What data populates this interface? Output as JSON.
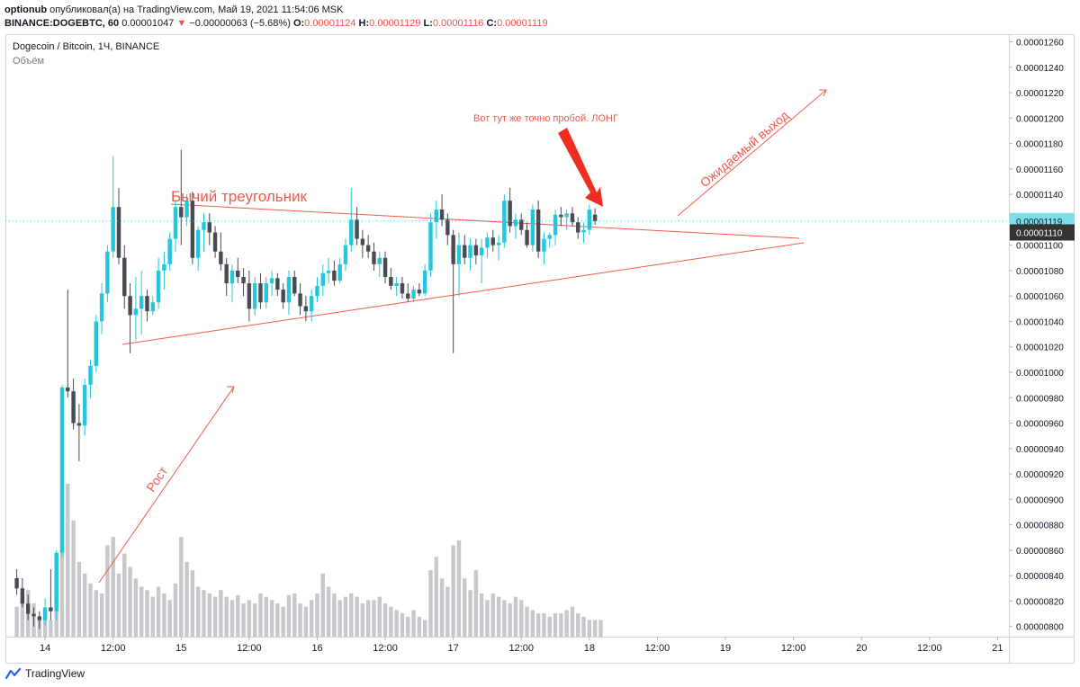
{
  "header": {
    "author": "optionub",
    "published_text": "опубликовал(а) на TradingView.com, Май 19, 2021 11:54:06 MSK",
    "symbol_line": "BINANCE:DOGEBTC, 60",
    "last": "0.00001047",
    "change": "−0.00000063 (−5.68%)",
    "o_label": "O:",
    "o_value": "0.00001124",
    "h_label": "H:",
    "h_value": "0.00001129",
    "l_label": "L:",
    "l_value": "0.00001116",
    "c_label": "C:",
    "c_value": "0.00001119"
  },
  "legend": {
    "title": "Dogecoin / Bitcoin, 1Ч, BINANCE",
    "volume_label": "Объём"
  },
  "footer": {
    "brand": "TradingView"
  },
  "colors": {
    "up": "#26c6da",
    "down": "#4a4a55",
    "annotation": "#f05a4a",
    "volume": "#c8c8cc",
    "price_tag_current": "#7ddde8",
    "price_tag_alt": "#333333"
  },
  "chart_data": {
    "type": "candlestick",
    "title": "Dogecoin / Bitcoin, 1Ч, BINANCE",
    "y_axis_ticks": [
      "0.00000800",
      "0.00000820",
      "0.00000840",
      "0.00000860",
      "0.00000880",
      "0.00000900",
      "0.00000920",
      "0.00000940",
      "0.00000960",
      "0.00000980",
      "0.00001000",
      "0.00001020",
      "0.00001040",
      "0.00001060",
      "0.00001080",
      "0.00001100",
      "0.00001120",
      "0.00001140",
      "0.00001160",
      "0.00001180",
      "0.00001200",
      "0.00001220",
      "0.00001240",
      "0.00001260"
    ],
    "ylim": [
      7.92e-06,
      1.266e-05
    ],
    "x_axis_ticks": [
      {
        "label": "14",
        "hour": 0
      },
      {
        "label": "12:00",
        "hour": 12
      },
      {
        "label": "15",
        "hour": 24
      },
      {
        "label": "12:00",
        "hour": 36
      },
      {
        "label": "16",
        "hour": 48
      },
      {
        "label": "12:00",
        "hour": 60
      },
      {
        "label": "17",
        "hour": 72
      },
      {
        "label": "12:00",
        "hour": 84
      },
      {
        "label": "18",
        "hour": 96
      },
      {
        "label": "12:00",
        "hour": 108
      },
      {
        "label": "19",
        "hour": 120
      },
      {
        "label": "12:00",
        "hour": 132
      },
      {
        "label": "20",
        "hour": 144
      },
      {
        "label": "12:00",
        "hour": 156
      },
      {
        "label": "21",
        "hour": 168
      }
    ],
    "x_range_hours": [
      -7,
      170
    ],
    "price_tags": [
      {
        "value": "0.00001119",
        "kind": "current"
      },
      {
        "value": "0.00001110",
        "kind": "alt"
      }
    ],
    "series": [
      {
        "name": "DOGEBTC",
        "ohlc": [
          [
            8.38e-06,
            8.45e-06,
            8.25e-06,
            8.3e-06
          ],
          [
            8.3e-06,
            8.38e-06,
            8.15e-06,
            8.18e-06
          ],
          [
            8.18e-06,
            8.25e-06,
            8.05e-06,
            8.1e-06
          ],
          [
            8.1e-06,
            8.15e-06,
            8e-06,
            8.08e-06
          ],
          [
            8.08e-06,
            8.12e-06,
            7.98e-06,
            8.05e-06
          ],
          [
            8.05e-06,
            8.22e-06,
            8e-06,
            8.15e-06
          ],
          [
            8.15e-06,
            8.45e-06,
            8.05e-06,
            8.12e-06
          ],
          [
            8.12e-06,
            8.6e-06,
            8.05e-06,
            8.58e-06
          ],
          [
            8.58e-06,
            9.9e-06,
            8.55e-06,
            9.88e-06
          ],
          [
            9.88e-06,
            1.065e-05,
            9.8e-06,
            9.85e-06
          ],
          [
            9.85e-06,
            9.95e-06,
            9.55e-06,
            9.6e-06
          ],
          [
            9.6e-06,
            9.75e-06,
            9.3e-06,
            9.58e-06
          ],
          [
            9.58e-06,
            9.95e-06,
            9.5e-06,
            9.9e-06
          ],
          [
            9.9e-06,
            1.01e-05,
            9.8e-06,
            1.005e-05
          ],
          [
            1.005e-05,
            1.045e-05,
            1e-05,
            1.04e-05
          ],
          [
            1.04e-05,
            1.07e-05,
            1.03e-05,
            1.062e-05
          ],
          [
            1.062e-05,
            1.1e-05,
            1.055e-05,
            1.095e-05
          ],
          [
            1.095e-05,
            1.17e-05,
            1.09e-05,
            1.13e-05
          ],
          [
            1.13e-05,
            1.145e-05,
            1.085e-05,
            1.09e-05
          ],
          [
            1.09e-05,
            1.1e-05,
            1.05e-05,
            1.06e-05
          ],
          [
            1.06e-05,
            1.07e-05,
            1.015e-05,
            1.045e-05
          ],
          [
            1.045e-05,
            1.075e-05,
            1.025e-05,
            1.05e-05
          ],
          [
            1.05e-05,
            1.08e-05,
            1.03e-05,
            1.06e-05
          ],
          [
            1.06e-05,
            1.065e-05,
            1.04e-05,
            1.048e-05
          ],
          [
            1.048e-05,
            1.06e-05,
            1.045e-05,
            1.055e-05
          ],
          [
            1.055e-05,
            1.09e-05,
            1.05e-05,
            1.08e-05
          ],
          [
            1.08e-05,
            1.095e-05,
            1.065e-05,
            1.085e-05
          ],
          [
            1.085e-05,
            1.11e-05,
            1.08e-05,
            1.105e-05
          ],
          [
            1.105e-05,
            1.135e-05,
            1.095e-05,
            1.13e-05
          ],
          [
            1.13e-05,
            1.175e-05,
            1.1e-05,
            1.122e-05
          ],
          [
            1.122e-05,
            1.14e-05,
            1.115e-05,
            1.135e-05
          ],
          [
            1.135e-05,
            1.142e-05,
            1.085e-05,
            1.09e-05
          ],
          [
            1.09e-05,
            1.115e-05,
            1.08e-05,
            1.112e-05
          ],
          [
            1.112e-05,
            1.125e-05,
            1.095e-05,
            1.118e-05
          ],
          [
            1.118e-05,
            1.125e-05,
            1.1e-05,
            1.11e-05
          ],
          [
            1.11e-05,
            1.115e-05,
            1.09e-05,
            1.095e-05
          ],
          [
            1.095e-05,
            1.11e-05,
            1.08e-05,
            1.085e-05
          ],
          [
            1.085e-05,
            1.09e-05,
            1.06e-05,
            1.07e-05
          ],
          [
            1.07e-05,
            1.085e-05,
            1.055e-05,
            1.08e-05
          ],
          [
            1.08e-05,
            1.09e-05,
            1.07e-05,
            1.075e-05
          ],
          [
            1.075e-05,
            1.082e-05,
            1.06e-05,
            1.07e-05
          ],
          [
            1.07e-05,
            1.08e-05,
            1.04e-05,
            1.05e-05
          ],
          [
            1.05e-05,
            1.075e-05,
            1.045e-05,
            1.07e-05
          ],
          [
            1.07e-05,
            1.078e-05,
            1.05e-05,
            1.055e-05
          ],
          [
            1.055e-05,
            1.075e-05,
            1.05e-05,
            1.07e-05
          ],
          [
            1.07e-05,
            1.08e-05,
            1.06e-05,
            1.074e-05
          ],
          [
            1.074e-05,
            1.078e-05,
            1.06e-05,
            1.065e-05
          ],
          [
            1.065e-05,
            1.07e-05,
            1.05e-05,
            1.055e-05
          ],
          [
            1.055e-05,
            1.08e-05,
            1.045e-05,
            1.075e-05
          ],
          [
            1.075e-05,
            1.08e-05,
            1.06e-05,
            1.062e-05
          ],
          [
            1.062e-05,
            1.07e-05,
            1.045e-05,
            1.052e-05
          ],
          [
            1.052e-05,
            1.06e-05,
            1.04e-05,
            1.048e-05
          ],
          [
            1.048e-05,
            1.065e-05,
            1.04e-05,
            1.06e-05
          ],
          [
            1.06e-05,
            1.075e-05,
            1.055e-05,
            1.068e-05
          ],
          [
            1.068e-05,
            1.085e-05,
            1.06e-05,
            1.078e-05
          ],
          [
            1.078e-05,
            1.09e-05,
            1.07e-05,
            1.08e-05
          ],
          [
            1.08e-05,
            1.088e-05,
            1.068e-05,
            1.072e-05
          ],
          [
            1.072e-05,
            1.09e-05,
            1.07e-05,
            1.085e-05
          ],
          [
            1.085e-05,
            1.105e-05,
            1.08e-05,
            1.1e-05
          ],
          [
            1.1e-05,
            1.145e-05,
            1.095e-05,
            1.12e-05
          ],
          [
            1.12e-05,
            1.13e-05,
            1.1e-05,
            1.105e-05
          ],
          [
            1.105e-05,
            1.112e-05,
            1.09e-05,
            1.1e-05
          ],
          [
            1.1e-05,
            1.108e-05,
            1.09e-05,
            1.095e-05
          ],
          [
            1.095e-05,
            1.102e-05,
            1.08e-05,
            1.085e-05
          ],
          [
            1.085e-05,
            1.095e-05,
            1.075e-05,
            1.09e-05
          ],
          [
            1.09e-05,
            1.095e-05,
            1.07e-05,
            1.075e-05
          ],
          [
            1.075e-05,
            1.082e-05,
            1.065e-05,
            1.068e-05
          ],
          [
            1.068e-05,
            1.075e-05,
            1.06e-05,
            1.07e-05
          ],
          [
            1.07e-05,
            1.075e-05,
            1.058e-05,
            1.062e-05
          ],
          [
            1.062e-05,
            1.07e-05,
            1.055e-05,
            1.058e-05
          ],
          [
            1.058e-05,
            1.068e-05,
            1.055e-05,
            1.065e-05
          ],
          [
            1.065e-05,
            1.07e-05,
            1.06e-05,
            1.062e-05
          ],
          [
            1.062e-05,
            1.085e-05,
            1.06e-05,
            1.08e-05
          ],
          [
            1.08e-05,
            1.125e-05,
            1.075e-05,
            1.118e-05
          ],
          [
            1.118e-05,
            1.135e-05,
            1.105e-05,
            1.128e-05
          ],
          [
            1.128e-05,
            1.14e-05,
            1.115e-05,
            1.12e-05
          ],
          [
            1.12e-05,
            1.125e-05,
            1.1e-05,
            1.108e-05
          ],
          [
            1.108e-05,
            1.112e-05,
            1.015e-05,
            1.085e-05
          ],
          [
            1.085e-05,
            1.11e-05,
            1.06e-05,
            1.1e-05
          ],
          [
            1.1e-05,
            1.108e-05,
            1.085e-05,
            1.09e-05
          ],
          [
            1.09e-05,
            1.105e-05,
            1.08e-05,
            1.1e-05
          ],
          [
            1.1e-05,
            1.105e-05,
            1.085e-05,
            1.092e-05
          ],
          [
            1.092e-05,
            1.105e-05,
            1.07e-05,
            1.098e-05
          ],
          [
            1.098e-05,
            1.11e-05,
            1.09e-05,
            1.106e-05
          ],
          [
            1.106e-05,
            1.112e-05,
            1.095e-05,
            1.1e-05
          ],
          [
            1.1e-05,
            1.108e-05,
            1.088e-05,
            1.102e-05
          ],
          [
            1.102e-05,
            1.14e-05,
            1.098e-05,
            1.135e-05
          ],
          [
            1.135e-05,
            1.145e-05,
            1.11e-05,
            1.115e-05
          ],
          [
            1.115e-05,
            1.125e-05,
            1.105e-05,
            1.12e-05
          ],
          [
            1.12e-05,
            1.125e-05,
            1.108e-05,
            1.112e-05
          ],
          [
            1.112e-05,
            1.118e-05,
            1.098e-05,
            1.1e-05
          ],
          [
            1.1e-05,
            1.132e-05,
            1.095e-05,
            1.128e-05
          ],
          [
            1.128e-05,
            1.135e-05,
            1.09e-05,
            1.095e-05
          ],
          [
            1.095e-05,
            1.11e-05,
            1.085e-05,
            1.105e-05
          ],
          [
            1.105e-05,
            1.11e-05,
            1.098e-05,
            1.108e-05
          ],
          [
            1.108e-05,
            1.128e-05,
            1.1e-05,
            1.124e-05
          ],
          [
            1.124e-05,
            1.13e-05,
            1.115e-05,
            1.122e-05
          ],
          [
            1.122e-05,
            1.128e-05,
            1.112e-05,
            1.125e-05
          ],
          [
            1.125e-05,
            1.13e-05,
            1.115e-05,
            1.118e-05
          ],
          [
            1.118e-05,
            1.122e-05,
            1.105e-05,
            1.11e-05
          ],
          [
            1.11e-05,
            1.118e-05,
            1.102e-05,
            1.112e-05
          ],
          [
            1.112e-05,
            1.132e-05,
            1.108e-05,
            1.128e-05
          ],
          [
            1.124e-05,
            1.129e-05,
            1.116e-05,
            1.119e-05
          ]
        ]
      },
      {
        "name": "Объём",
        "values": [
          18,
          22,
          28,
          20,
          12,
          16,
          10,
          50,
          85,
          92,
          70,
          45,
          38,
          32,
          28,
          26,
          55,
          60,
          38,
          50,
          42,
          35,
          30,
          28,
          24,
          30,
          26,
          22,
          32,
          60,
          45,
          40,
          30,
          28,
          26,
          24,
          28,
          24,
          22,
          25,
          20,
          22,
          20,
          26,
          24,
          22,
          20,
          18,
          25,
          26,
          20,
          18,
          22,
          26,
          38,
          30,
          26,
          22,
          24,
          26,
          24,
          20,
          22,
          22,
          24,
          20,
          18,
          16,
          14,
          12,
          16,
          12,
          10,
          40,
          48,
          35,
          30,
          55,
          58,
          35,
          28,
          40,
          26,
          22,
          26,
          24,
          22,
          20,
          24,
          22,
          18,
          16,
          14,
          14,
          12,
          14,
          14,
          16,
          18,
          14,
          12,
          10,
          10,
          10
        ]
      }
    ],
    "annotations": [
      {
        "kind": "text",
        "text": "Бычий треугольник"
      },
      {
        "kind": "text",
        "text": "Вот тут же точно пробой. ЛОНГ"
      },
      {
        "kind": "text",
        "text": "Ожидаемый выход"
      },
      {
        "kind": "text",
        "text": "Рост"
      }
    ],
    "grid": false,
    "legend": "top-left"
  }
}
